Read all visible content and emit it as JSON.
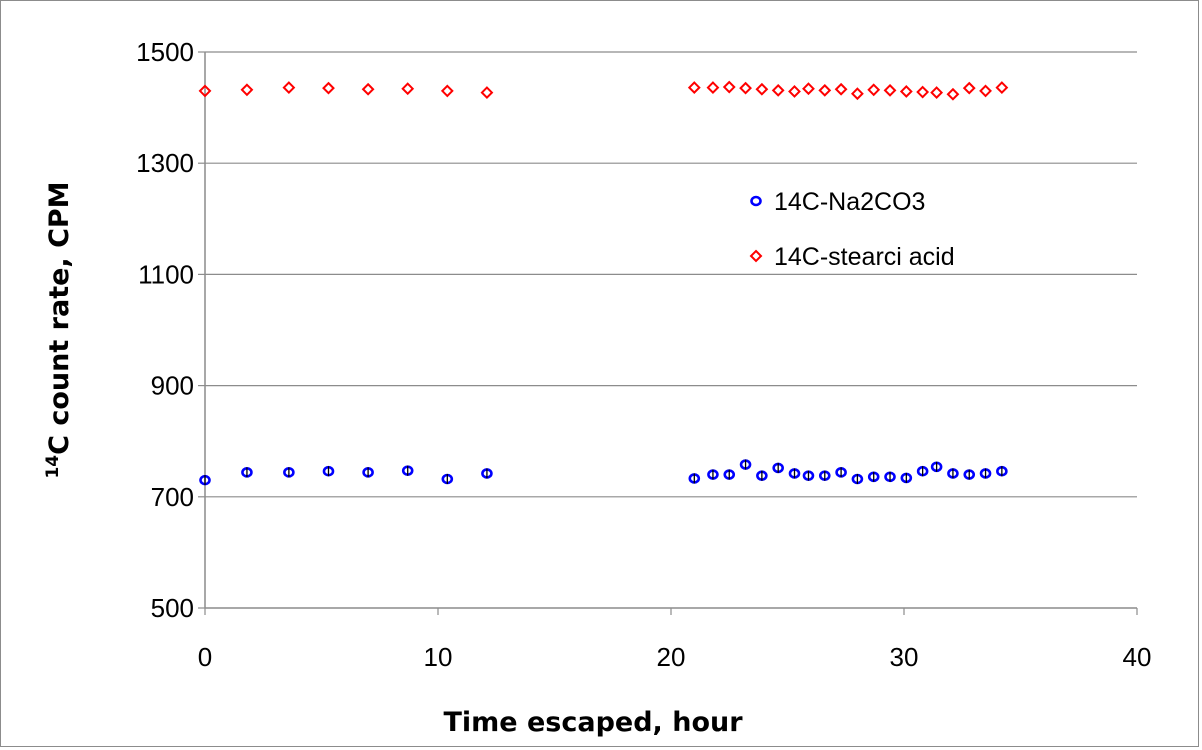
{
  "chart_data": {
    "type": "scatter",
    "xlabel": "Time escaped, hour",
    "ylabel_superscript": "14",
    "ylabel_main": "C count rate, CPM",
    "xlim": [
      0,
      40
    ],
    "ylim": [
      500,
      1500
    ],
    "xticks": [
      0,
      10,
      20,
      30,
      40
    ],
    "yticks": [
      500,
      700,
      900,
      1100,
      1300,
      1500
    ],
    "grid": "horizontal major gridlines",
    "legend_position": "center-right",
    "series": [
      {
        "name": "14C-Na2CO3",
        "marker": "circle",
        "color": "#0000ff",
        "error_bars": true,
        "x": [
          0,
          1.8,
          3.6,
          5.3,
          7.0,
          8.7,
          10.4,
          12.1,
          21.0,
          21.8,
          22.5,
          23.2,
          23.9,
          24.6,
          25.3,
          25.9,
          26.6,
          27.3,
          28.0,
          28.7,
          29.4,
          30.1,
          30.8,
          31.4,
          32.1,
          32.8,
          33.5,
          34.2
        ],
        "y": [
          730,
          744,
          744,
          746,
          744,
          747,
          732,
          742,
          733,
          740,
          740,
          758,
          738,
          752,
          742,
          738,
          738,
          744,
          732,
          736,
          736,
          734,
          746,
          754,
          742,
          740,
          742,
          746
        ]
      },
      {
        "name": "14C-stearci acid",
        "marker": "diamond",
        "color": "#ff0000",
        "error_bars": false,
        "x": [
          0,
          1.8,
          3.6,
          5.3,
          7.0,
          8.7,
          10.4,
          12.1,
          21.0,
          21.8,
          22.5,
          23.2,
          23.9,
          24.6,
          25.3,
          25.9,
          26.6,
          27.3,
          28.0,
          28.7,
          29.4,
          30.1,
          30.8,
          31.4,
          32.1,
          32.8,
          33.5,
          34.2
        ],
        "y": [
          1430,
          1432,
          1436,
          1435,
          1433,
          1434,
          1430,
          1427,
          1436,
          1436,
          1437,
          1435,
          1433,
          1431,
          1429,
          1434,
          1431,
          1433,
          1425,
          1432,
          1431,
          1429,
          1428,
          1427,
          1424,
          1435,
          1430,
          1436
        ]
      }
    ]
  }
}
